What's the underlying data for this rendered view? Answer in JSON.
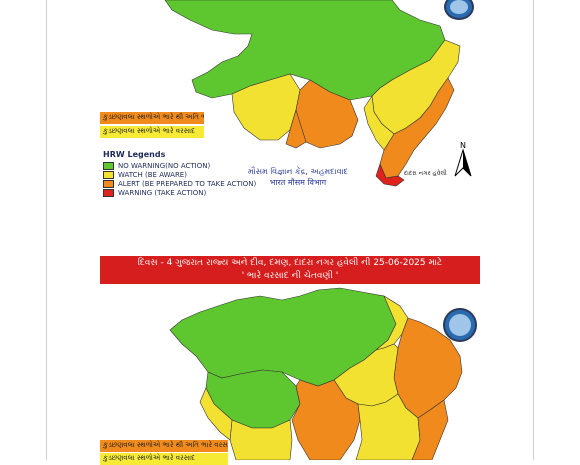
{
  "page1": {
    "legend_heavy_very_heavy": "કુડછણવલા સ્થળોએ ભારે થી અતિ ભારે વરસાદ",
    "legend_heavy": "કુડછણવલા સ્થળોએ ભારે વરસાદ",
    "hrw_title": "HRW Legends",
    "hrw_items": [
      {
        "label": "NO WARNING(NO ACTION)",
        "color": "#5ec72f"
      },
      {
        "label": "WATCH (BE AWARE)",
        "color": "#f3e132"
      },
      {
        "label": "ALERT (BE PREPARED TO TAKE ACTION)",
        "color": "#f08a1c"
      },
      {
        "label": "WARNING (TAKE ACTION)",
        "color": "#e0221c"
      }
    ],
    "footer_line1": "મૌસમ વિજ્ઞાન કેંદ્ર, અહમદાવાદ",
    "footer_line2": "भारत मौसम विभाग",
    "north_label": "N",
    "callout_label": "દાદરા નગર હવેલી"
  },
  "page2": {
    "banner_line1": "દિવસ - 4 ગુજરાત રાજ્ય અને દીવ, દમણ, દાદરા નગર હવેલી ની 25-06-2025 માટે",
    "banner_line2": "' ભારે વરસાદ ની ચેતવણી '",
    "legend_heavy_very_heavy": "કુડછણવલા સ્થળોએ ભારે થી અતિ ભારે વરસાદ",
    "legend_heavy": "કુડછણવલા સ્થળોએ ભારે વરસાદ"
  },
  "colors": {
    "green": "#5ec72f",
    "yellow": "#f3e132",
    "orange": "#f08a1c",
    "red": "#e0221c",
    "banner": "#d61e1e"
  }
}
